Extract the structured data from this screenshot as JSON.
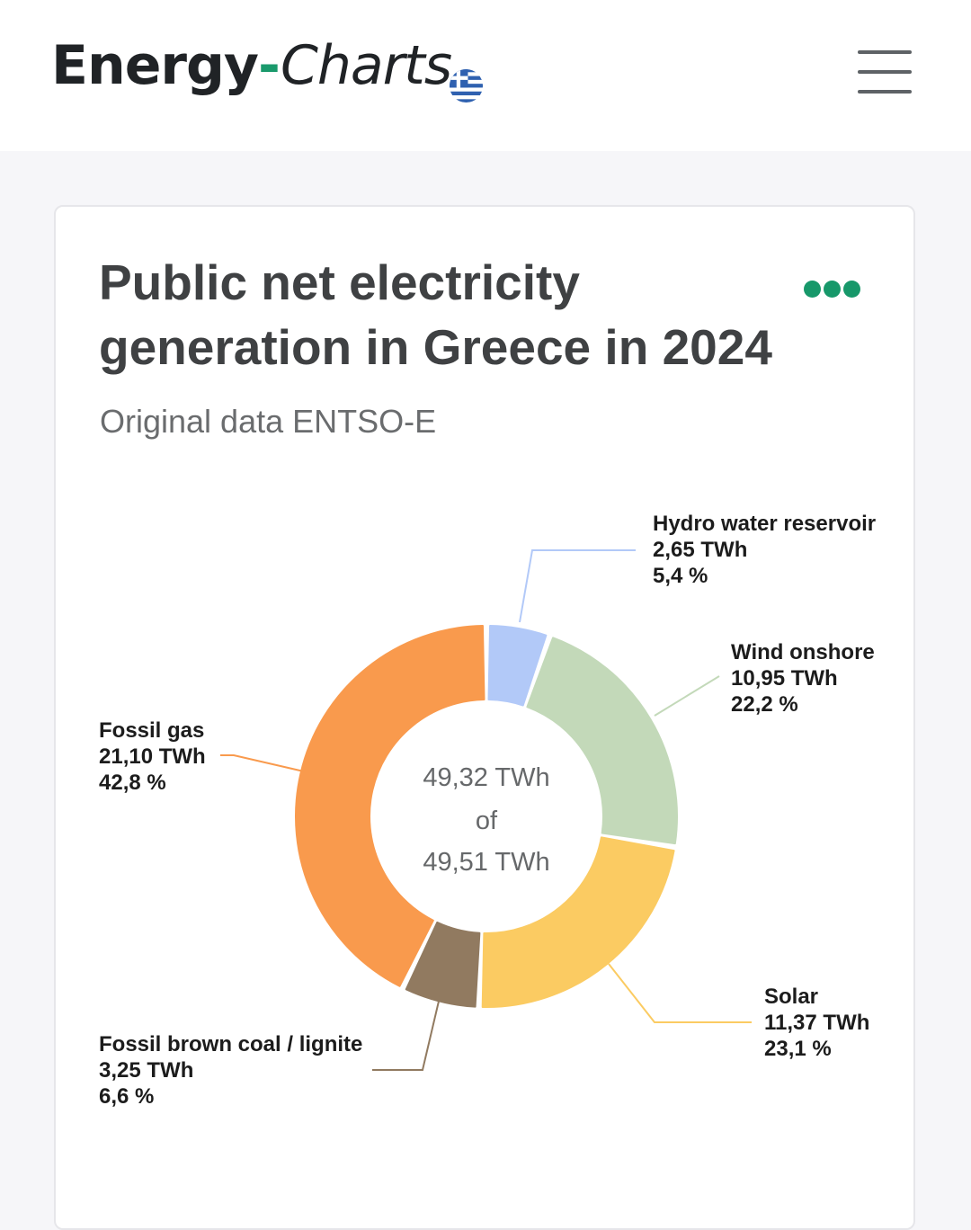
{
  "header": {
    "logo_energy": "Energy",
    "logo_dash": "-",
    "logo_charts": "Charts",
    "flag_icon": "greece-flag-icon",
    "menu_icon": "hamburger-menu-icon"
  },
  "card": {
    "more_icon": "more-options-icon",
    "accent_color": "#17986a"
  },
  "chart_data": {
    "type": "pie",
    "title": "Public net electricity generation in Greece in 2024",
    "subtitle": "Original data ENTSO-E",
    "center_total": "49,32 TWh",
    "center_of": "of",
    "center_grand_total": "49,51 TWh",
    "slices": [
      {
        "name": "Hydro water reservoir",
        "value": 2.65,
        "value_label": "2,65 TWh",
        "percent_label": "5,4 %",
        "color": "#b2c9f8"
      },
      {
        "name": "Wind onshore",
        "value": 10.95,
        "value_label": "10,95 TWh",
        "percent_label": "22,2 %",
        "color": "#c3d9b9"
      },
      {
        "name": "Solar",
        "value": 11.37,
        "value_label": "11,37 TWh",
        "percent_label": "23,1 %",
        "color": "#fbcb62"
      },
      {
        "name": "Fossil brown coal / lignite",
        "value": 3.25,
        "value_label": "3,25 TWh",
        "percent_label": "6,6 %",
        "color": "#917a60"
      },
      {
        "name": "Fossil gas",
        "value": 21.1,
        "value_label": "21,10 TWh",
        "percent_label": "42,8 %",
        "color": "#f99a4d"
      }
    ]
  }
}
